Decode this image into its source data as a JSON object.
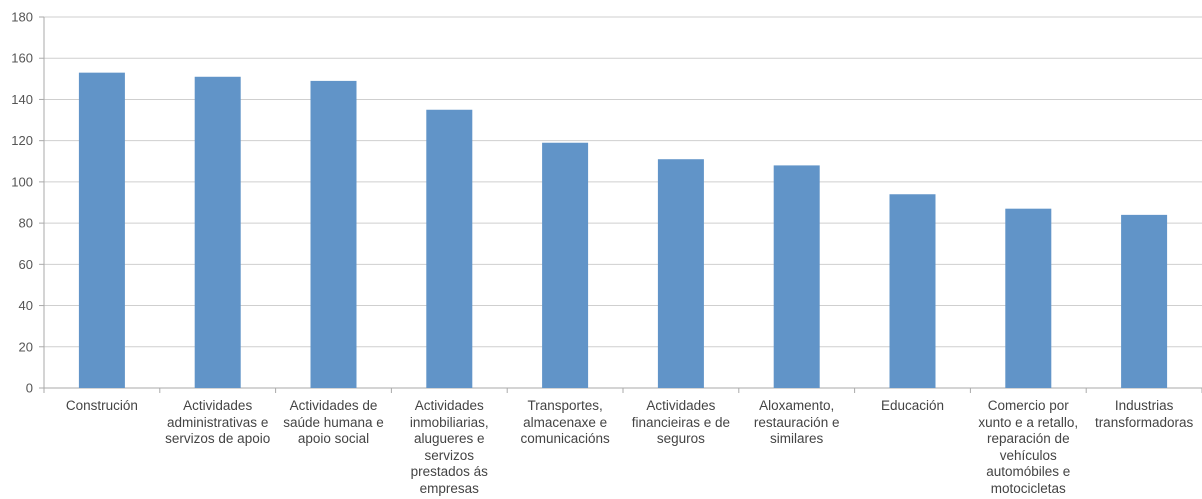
{
  "chart_data": {
    "type": "bar",
    "categories": [
      "Construción",
      "Actividades administrativas e servizos de apoio",
      "Actividades de saúde humana e apoio social",
      "Actividades inmobiliarias, alugueres e servizos prestados ás empresas",
      "Transportes, almacenaxe e comunicacións",
      "Actividades financieiras e de seguros",
      "Aloxamento, restauración e similares",
      "Educación",
      "Comercio por xunto e a retallo, reparación de vehículos automóbiles e motocicletas",
      "Industrias transformadoras"
    ],
    "values": [
      153,
      151,
      149,
      135,
      119,
      111,
      108,
      94,
      87,
      84
    ],
    "ylim": [
      0,
      180
    ],
    "yticks": [
      0,
      20,
      40,
      60,
      80,
      100,
      120,
      140,
      160,
      180
    ],
    "grid": true,
    "bar_color": "#6194c8",
    "title": "",
    "xlabel": "",
    "ylabel": ""
  }
}
